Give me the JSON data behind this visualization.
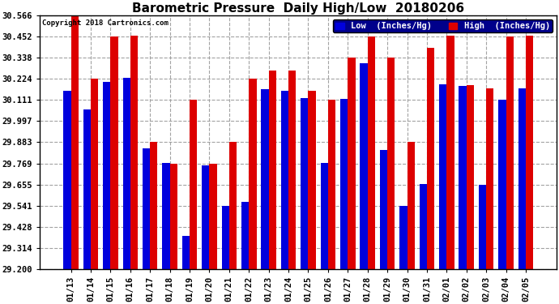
{
  "title": "Barometric Pressure  Daily High/Low  20180206",
  "copyright": "Copyright 2018 Cartronics.com",
  "dates": [
    "01/13",
    "01/14",
    "01/15",
    "01/16",
    "01/17",
    "01/18",
    "01/19",
    "01/20",
    "01/21",
    "01/22",
    "01/23",
    "01/24",
    "01/25",
    "01/26",
    "01/27",
    "01/28",
    "01/29",
    "01/30",
    "01/31",
    "02/01",
    "02/02",
    "02/03",
    "02/04",
    "02/05"
  ],
  "low_values": [
    30.16,
    30.06,
    30.21,
    30.23,
    29.85,
    29.77,
    29.38,
    29.76,
    29.54,
    29.56,
    30.17,
    30.16,
    30.12,
    29.77,
    30.115,
    30.31,
    29.84,
    29.54,
    29.66,
    30.195,
    30.185,
    29.655,
    30.11,
    30.175
  ],
  "high_values": [
    30.566,
    30.224,
    30.452,
    30.455,
    29.883,
    29.769,
    30.111,
    29.769,
    29.883,
    30.224,
    30.27,
    30.27,
    30.16,
    30.111,
    30.338,
    30.452,
    30.338,
    29.883,
    30.39,
    30.455,
    30.19,
    30.175,
    30.452,
    30.455
  ],
  "ymin": 29.2,
  "ymax": 30.566,
  "yticks": [
    29.2,
    29.314,
    29.428,
    29.541,
    29.655,
    29.769,
    29.883,
    29.997,
    30.111,
    30.224,
    30.338,
    30.452,
    30.566
  ],
  "bar_width": 0.38,
  "low_color": "#0000dd",
  "high_color": "#dd0000",
  "bg_color": "#ffffff",
  "grid_color": "#999999",
  "title_fontsize": 11,
  "legend_low_label": "Low  (Inches/Hg)",
  "legend_high_label": "High  (Inches/Hg)"
}
